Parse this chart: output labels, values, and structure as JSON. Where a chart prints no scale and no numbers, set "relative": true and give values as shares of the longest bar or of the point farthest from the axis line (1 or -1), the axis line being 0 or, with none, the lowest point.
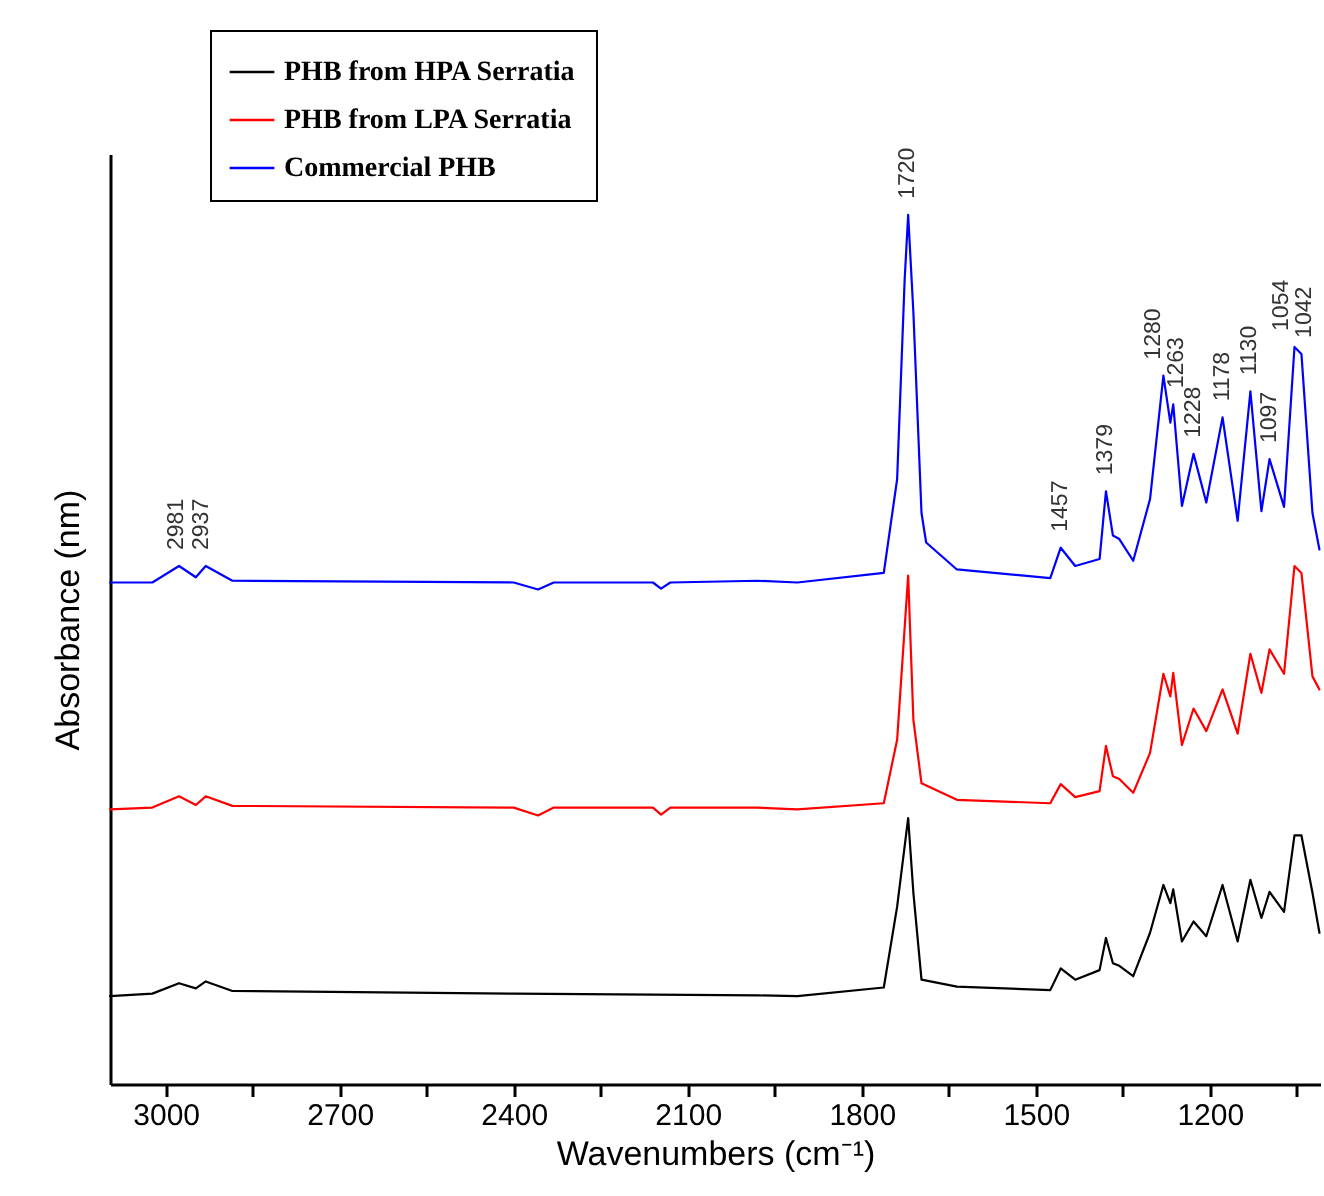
{
  "chart_data": {
    "type": "line",
    "relative": true,
    "xlabel": "Wavenumbers (cm⁻¹)",
    "ylabel": "Absorbance (nm)",
    "legend": "top left",
    "tick_labels": "x",
    "xlim": [
      3096,
      1010
    ],
    "xticks": [
      3000,
      {
        "value": 2850,
        "label": null
      },
      2700,
      {
        "value": 2550,
        "label": null
      },
      2400,
      {
        "value": 2250,
        "label": null
      },
      2100,
      {
        "value": 1950,
        "label": null
      },
      1800,
      {
        "value": 1650,
        "label": null
      },
      1500,
      {
        "value": 1350,
        "label": null
      },
      1200,
      {
        "value": 1050,
        "label": null
      }
    ],
    "series": [
      {
        "name": "PHB from HPA Serratia",
        "color": "#000000",
        "x": [
          3096,
          3023,
          2977,
          2948,
          2931,
          2885,
          2400,
          1980,
          1911,
          1762,
          1739,
          1720,
          1711,
          1697,
          1636,
          1475,
          1457,
          1432,
          1390,
          1379,
          1367,
          1356,
          1332,
          1303,
          1280,
          1268,
          1263,
          1248,
          1228,
          1206,
          1178,
          1152,
          1130,
          1111,
          1097,
          1072,
          1054,
          1042,
          1023,
          1011
        ],
        "values": [
          0.101,
          0.104,
          0.116,
          0.11,
          0.118,
          0.107,
          0.104,
          0.102,
          0.101,
          0.111,
          0.204,
          0.306,
          0.22,
          0.12,
          0.112,
          0.108,
          0.133,
          0.12,
          0.131,
          0.168,
          0.139,
          0.136,
          0.124,
          0.174,
          0.229,
          0.208,
          0.224,
          0.164,
          0.187,
          0.17,
          0.229,
          0.164,
          0.235,
          0.191,
          0.221,
          0.198,
          0.286,
          0.286,
          0.22,
          0.174
        ]
      },
      {
        "name": "PHB from LPA Serratia",
        "color": "#ff0000",
        "x": [
          3096,
          3023,
          2977,
          2948,
          2931,
          2885,
          2400,
          2358,
          2331,
          2160,
          2146,
          2130,
          1980,
          1911,
          1762,
          1739,
          1720,
          1711,
          1697,
          1636,
          1475,
          1457,
          1432,
          1390,
          1379,
          1367,
          1356,
          1332,
          1303,
          1280,
          1268,
          1263,
          1248,
          1228,
          1206,
          1178,
          1152,
          1130,
          1111,
          1097,
          1072,
          1054,
          1042,
          1023,
          1011
        ],
        "values": [
          0.316,
          0.318,
          0.331,
          0.321,
          0.331,
          0.32,
          0.318,
          0.309,
          0.318,
          0.318,
          0.31,
          0.318,
          0.318,
          0.316,
          0.323,
          0.396,
          0.585,
          0.419,
          0.346,
          0.327,
          0.323,
          0.345,
          0.33,
          0.337,
          0.389,
          0.354,
          0.351,
          0.335,
          0.381,
          0.472,
          0.446,
          0.473,
          0.39,
          0.432,
          0.406,
          0.454,
          0.403,
          0.495,
          0.45,
          0.5,
          0.472,
          0.596,
          0.588,
          0.469,
          0.454
        ]
      },
      {
        "name": "Commercial PHB",
        "color": "#0000ff",
        "x": [
          3096,
          3023,
          2977,
          2948,
          2931,
          2885,
          2400,
          2358,
          2331,
          2160,
          2146,
          2130,
          1980,
          1911,
          1762,
          1739,
          1726,
          1720,
          1711,
          1697,
          1689,
          1636,
          1475,
          1457,
          1432,
          1390,
          1379,
          1367,
          1356,
          1332,
          1303,
          1280,
          1268,
          1263,
          1248,
          1228,
          1206,
          1178,
          1152,
          1130,
          1111,
          1097,
          1072,
          1054,
          1042,
          1023,
          1011
        ],
        "values": [
          0.577,
          0.577,
          0.596,
          0.583,
          0.596,
          0.579,
          0.577,
          0.569,
          0.577,
          0.577,
          0.57,
          0.577,
          0.579,
          0.577,
          0.588,
          0.696,
          0.926,
          1.0,
          0.888,
          0.657,
          0.623,
          0.592,
          0.582,
          0.617,
          0.596,
          0.604,
          0.682,
          0.631,
          0.627,
          0.602,
          0.673,
          0.815,
          0.761,
          0.782,
          0.665,
          0.725,
          0.669,
          0.767,
          0.648,
          0.797,
          0.659,
          0.719,
          0.664,
          0.848,
          0.84,
          0.657,
          0.615
        ]
      }
    ],
    "annotations": [
      {
        "text": "2981",
        "x": 2981,
        "y": 0.596
      },
      {
        "text": "2937",
        "x": 2937,
        "y": 0.596
      },
      {
        "text": "1720",
        "x": 1720,
        "y": 1.0
      },
      {
        "text": "1457",
        "x": 1457,
        "y": 0.617
      },
      {
        "text": "1379",
        "x": 1379,
        "y": 0.682
      },
      {
        "text": "1280",
        "x": 1280,
        "y": 0.815
      },
      {
        "text": "1263",
        "x": 1263,
        "y": 0.782
      },
      {
        "text": "1228",
        "x": 1228,
        "y": 0.725
      },
      {
        "text": "1178",
        "x": 1178,
        "y": 0.767
      },
      {
        "text": "1130",
        "x": 1130,
        "y": 0.797
      },
      {
        "text": "1097",
        "x": 1097,
        "y": 0.719
      },
      {
        "text": "1054",
        "x": 1054,
        "y": 0.848
      },
      {
        "text": "1042",
        "x": 1042,
        "y": 0.84
      }
    ]
  }
}
